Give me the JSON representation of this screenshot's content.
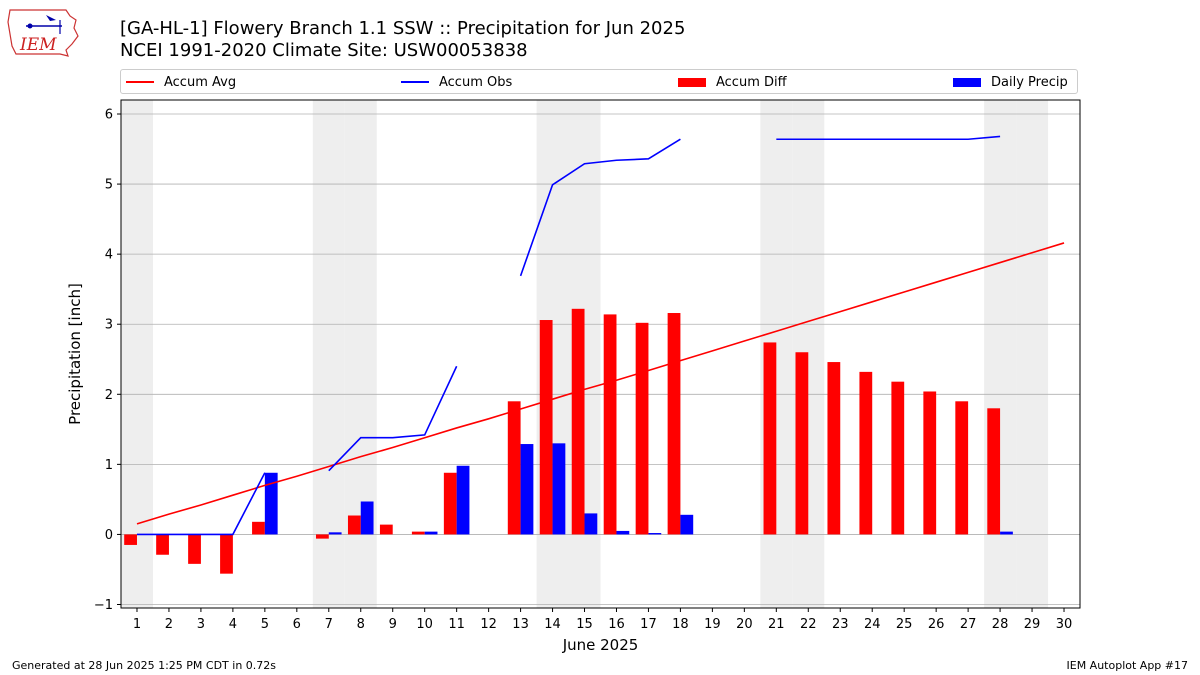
{
  "title_line1": "[GA-HL-1] Flowery Branch 1.1 SSW :: Precipitation for Jun 2025",
  "title_line2": "NCEI 1991-2020 Climate Site: USW00053838",
  "logo_text": "IEM",
  "footer_left": "Generated at 28 Jun 2025 1:25 PM CDT in 0.72s",
  "footer_right": "IEM Autoplot App #17",
  "colors": {
    "accum_avg": "#ff0000",
    "accum_obs": "#0000ff",
    "accum_diff": "#ff0000",
    "daily_precip": "#0000ff",
    "weekend_shade": "#eeeeee",
    "grid": "#b0b0b0"
  },
  "chart_data": {
    "type": "bar",
    "xlabel": "June 2025",
    "ylabel": "Precipitation [inch]",
    "xlim": [
      0.5,
      30.5
    ],
    "ylim": [
      -1.05,
      6.2
    ],
    "yticks": [
      -1,
      0,
      1,
      2,
      3,
      4,
      5,
      6
    ],
    "grid": true,
    "legend_position": "top",
    "days": [
      1,
      2,
      3,
      4,
      5,
      6,
      7,
      8,
      9,
      10,
      11,
      12,
      13,
      14,
      15,
      16,
      17,
      18,
      19,
      20,
      21,
      22,
      23,
      24,
      25,
      26,
      27,
      28,
      29,
      30
    ],
    "weekend_days": [
      1,
      7,
      8,
      14,
      15,
      21,
      22,
      28,
      29
    ],
    "series": [
      {
        "name": "Accum Avg",
        "type": "line",
        "values": [
          0.15,
          0.29,
          0.42,
          0.56,
          0.7,
          0.83,
          0.97,
          1.11,
          1.24,
          1.38,
          1.52,
          1.65,
          1.79,
          1.93,
          2.07,
          2.2,
          2.34,
          2.48,
          2.62,
          2.76,
          2.9,
          3.04,
          3.18,
          3.32,
          3.46,
          3.6,
          3.74,
          3.88,
          4.02,
          4.16
        ]
      },
      {
        "name": "Accum Obs",
        "type": "line",
        "values": [
          0.0,
          0.0,
          0.0,
          0.0,
          0.88,
          null,
          0.91,
          1.38,
          1.38,
          1.42,
          2.4,
          null,
          3.69,
          4.99,
          5.29,
          5.34,
          5.36,
          5.64,
          null,
          null,
          5.64,
          5.64,
          5.64,
          5.64,
          5.64,
          5.64,
          5.64,
          5.68,
          null,
          null
        ]
      },
      {
        "name": "Accum Diff",
        "type": "bar",
        "values": [
          -0.15,
          -0.29,
          -0.42,
          -0.56,
          0.18,
          null,
          -0.06,
          0.27,
          0.14,
          0.04,
          0.88,
          null,
          1.9,
          3.06,
          3.22,
          3.14,
          3.02,
          3.16,
          null,
          null,
          2.74,
          2.6,
          2.46,
          2.32,
          2.18,
          2.04,
          1.9,
          1.8,
          null,
          null
        ]
      },
      {
        "name": "Daily Precip",
        "type": "bar",
        "values": [
          0,
          0,
          0,
          0,
          0.88,
          null,
          0.03,
          0.47,
          0,
          0.04,
          0.98,
          null,
          1.29,
          1.3,
          0.3,
          0.05,
          0.02,
          0.28,
          null,
          null,
          0,
          0,
          0,
          0,
          0,
          0,
          0,
          0.04,
          null,
          null
        ]
      }
    ]
  }
}
